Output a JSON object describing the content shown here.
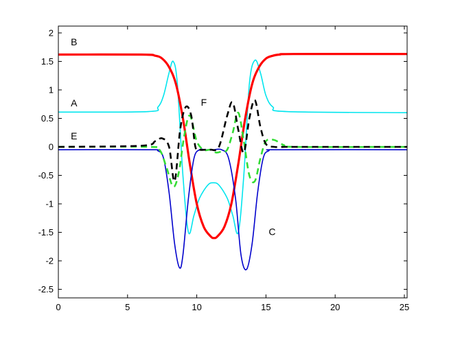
{
  "chart_data": {
    "type": "line",
    "title": "",
    "xlabel": "",
    "ylabel": "",
    "xlim": [
      0,
      25.2
    ],
    "ylim": [
      -2.65,
      2.12
    ],
    "grid": false,
    "xticks": [
      0,
      5,
      10,
      15,
      20,
      25
    ],
    "yticks": [
      -2.5,
      -2,
      -1.5,
      -1,
      -0.5,
      0,
      0.5,
      1,
      1.5,
      2
    ],
    "series": [
      {
        "name": "B",
        "color": "#ff0000",
        "style": "solid-thick",
        "x": [
          0,
          6,
          7,
          7.5,
          8,
          8.5,
          9,
          9.5,
          10,
          10.5,
          11,
          11.25,
          11.5,
          12,
          12.5,
          13,
          13.5,
          14,
          14.5,
          15,
          15.5,
          16,
          17,
          25.2
        ],
        "y": [
          1.62,
          1.62,
          1.6,
          1.55,
          1.4,
          1.1,
          0.5,
          -0.3,
          -1.0,
          -1.4,
          -1.57,
          -1.6,
          -1.57,
          -1.4,
          -1.0,
          -0.3,
          0.5,
          1.1,
          1.4,
          1.55,
          1.6,
          1.62,
          1.63,
          1.63
        ]
      },
      {
        "name": "A",
        "color": "#00e5ee",
        "style": "solid",
        "x": [
          0,
          6.5,
          7.2,
          7.6,
          8,
          8.3,
          8.6,
          9.0,
          9.4,
          9.8,
          10.2,
          10.8,
          11.2,
          11.6,
          12.2,
          12.6,
          13.0,
          13.4,
          13.8,
          14.2,
          14.6,
          15,
          15.5,
          16.5,
          25.2
        ],
        "y": [
          0.61,
          0.62,
          0.7,
          0.9,
          1.3,
          1.5,
          1.1,
          -0.5,
          -1.5,
          -1.2,
          -0.9,
          -0.67,
          -0.63,
          -0.67,
          -0.9,
          -1.2,
          -1.5,
          -0.5,
          1.1,
          1.52,
          1.3,
          0.9,
          0.7,
          0.62,
          0.6
        ]
      },
      {
        "name": "C",
        "color": "#0000cc",
        "style": "solid",
        "x": [
          0,
          6.5,
          7.2,
          7.6,
          8.0,
          8.4,
          8.75,
          9.0,
          9.4,
          9.8,
          10.2,
          10.6,
          11.2,
          11.8,
          12.3,
          12.8,
          13.2,
          13.6,
          14.0,
          14.4,
          14.8,
          15.2,
          16,
          25.2
        ],
        "y": [
          -0.05,
          -0.05,
          -0.07,
          -0.2,
          -0.8,
          -1.7,
          -2.12,
          -1.9,
          -0.9,
          -0.2,
          -0.05,
          -0.05,
          -0.05,
          -0.05,
          -0.2,
          -0.9,
          -1.9,
          -2.15,
          -1.7,
          -0.8,
          -0.2,
          -0.07,
          -0.05,
          -0.05
        ]
      },
      {
        "name": "E",
        "color": "#33dd33",
        "style": "dashed",
        "x": [
          0,
          6.5,
          7.3,
          7.8,
          8.3,
          8.7,
          9.1,
          9.5,
          10.0,
          10.5,
          11.0,
          11.4,
          11.8,
          12.2,
          12.6,
          13.0,
          13.4,
          13.8,
          14.2,
          14.6,
          15.0,
          15.6,
          16.3,
          17,
          25.2
        ],
        "y": [
          0.0,
          0.0,
          -0.05,
          -0.35,
          -0.7,
          -0.45,
          0.2,
          0.55,
          0.1,
          -0.05,
          -0.05,
          -0.1,
          -0.08,
          -0.05,
          0.25,
          0.6,
          0.1,
          -0.5,
          -0.6,
          -0.2,
          0.1,
          0.12,
          0.03,
          0.0,
          0.0
        ]
      },
      {
        "name": "F",
        "color": "#000000",
        "style": "dashed-thick",
        "x": [
          0,
          6.0,
          7.0,
          7.5,
          8.0,
          8.4,
          8.8,
          9.2,
          9.6,
          9.9,
          10.2,
          10.6,
          11.0,
          11.6,
          12.2,
          12.6,
          13.0,
          13.4,
          13.8,
          14.2,
          14.6,
          15.0,
          15.6,
          16.4,
          17.5,
          25.2
        ],
        "y": [
          0.0,
          0.02,
          0.1,
          0.15,
          0.0,
          -0.6,
          0.3,
          0.7,
          0.55,
          0.0,
          -0.05,
          -0.05,
          -0.05,
          0.0,
          0.55,
          0.78,
          0.3,
          -0.1,
          0.5,
          0.82,
          0.35,
          0.05,
          0.0,
          0.0,
          0.0,
          0.0
        ]
      }
    ],
    "annotations": [
      {
        "text": "B",
        "x": 0.9,
        "y": 1.78
      },
      {
        "text": "A",
        "x": 0.9,
        "y": 0.71
      },
      {
        "text": "E",
        "x": 0.9,
        "y": 0.13
      },
      {
        "text": "F",
        "x": 10.3,
        "y": 0.72
      },
      {
        "text": "C",
        "x": 15.2,
        "y": -1.55
      }
    ]
  }
}
